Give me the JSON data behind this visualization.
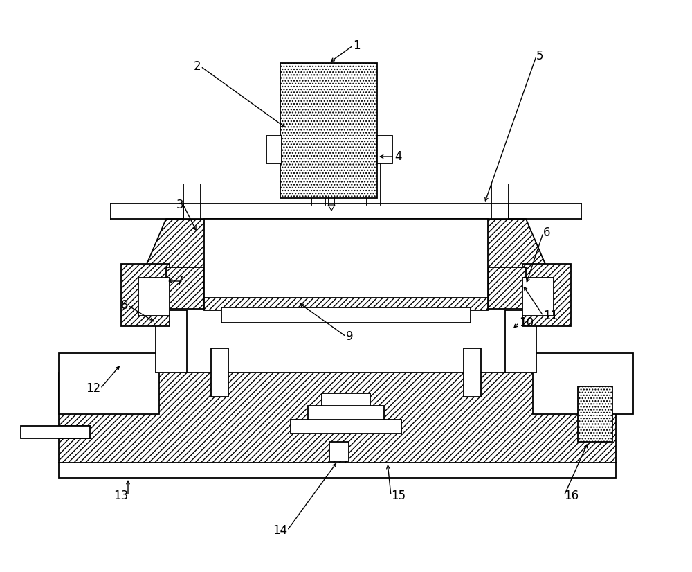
{
  "bg_color": "#ffffff",
  "lc": "#000000",
  "lw": 1.3
}
